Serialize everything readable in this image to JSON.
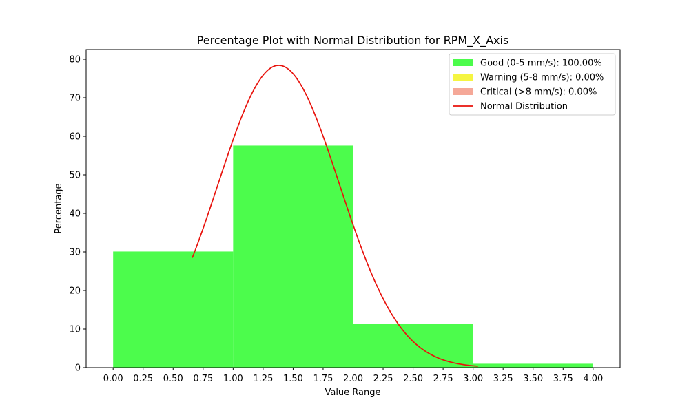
{
  "chart_data": {
    "type": "bar",
    "title": "Percentage Plot with Normal Distribution for RPM_X_Axis",
    "xlabel": "Value Range",
    "ylabel": "Percentage",
    "xlim": [
      -0.225,
      4.225
    ],
    "ylim": [
      0,
      82.5
    ],
    "xticks": [
      0.0,
      0.25,
      0.5,
      0.75,
      1.0,
      1.25,
      1.5,
      1.75,
      2.0,
      2.25,
      2.5,
      2.75,
      3.0,
      3.25,
      3.5,
      3.75,
      4.0
    ],
    "xtick_labels": [
      "0.00",
      "0.25",
      "0.50",
      "0.75",
      "1.00",
      "1.25",
      "1.50",
      "1.75",
      "2.00",
      "2.25",
      "2.50",
      "2.75",
      "3.00",
      "3.25",
      "3.50",
      "3.75",
      "4.00"
    ],
    "yticks": [
      0,
      10,
      20,
      30,
      40,
      50,
      60,
      70,
      80
    ],
    "ytick_labels": [
      "0",
      "10",
      "20",
      "30",
      "40",
      "50",
      "60",
      "70",
      "80"
    ],
    "bins": [
      {
        "start": 0,
        "end": 1,
        "value": 30.1
      },
      {
        "start": 1,
        "end": 2,
        "value": 57.6
      },
      {
        "start": 2,
        "end": 3,
        "value": 11.3
      },
      {
        "start": 3,
        "end": 4,
        "value": 1.0
      }
    ],
    "normal_curve": {
      "name": "Normal Distribution",
      "mean": 1.38,
      "std": 0.506,
      "peak": 78.4,
      "x_start": 0.66,
      "x_end": 3.04,
      "color": "#e8120c"
    },
    "legend": {
      "location": "upper right",
      "entries": [
        {
          "label": "Good (0-5 mm/s): 100.00%",
          "color": "#4cfc4c",
          "kind": "patch"
        },
        {
          "label": "Warning (5-8 mm/s): 0.00%",
          "color": "#f5f542",
          "kind": "patch"
        },
        {
          "label": "Critical (>8 mm/s): 0.00%",
          "color": "#f5a898",
          "kind": "patch"
        },
        {
          "label": "Normal Distribution",
          "color": "#e8120c",
          "kind": "line"
        }
      ]
    },
    "bar_color": "#4cfc4c"
  }
}
